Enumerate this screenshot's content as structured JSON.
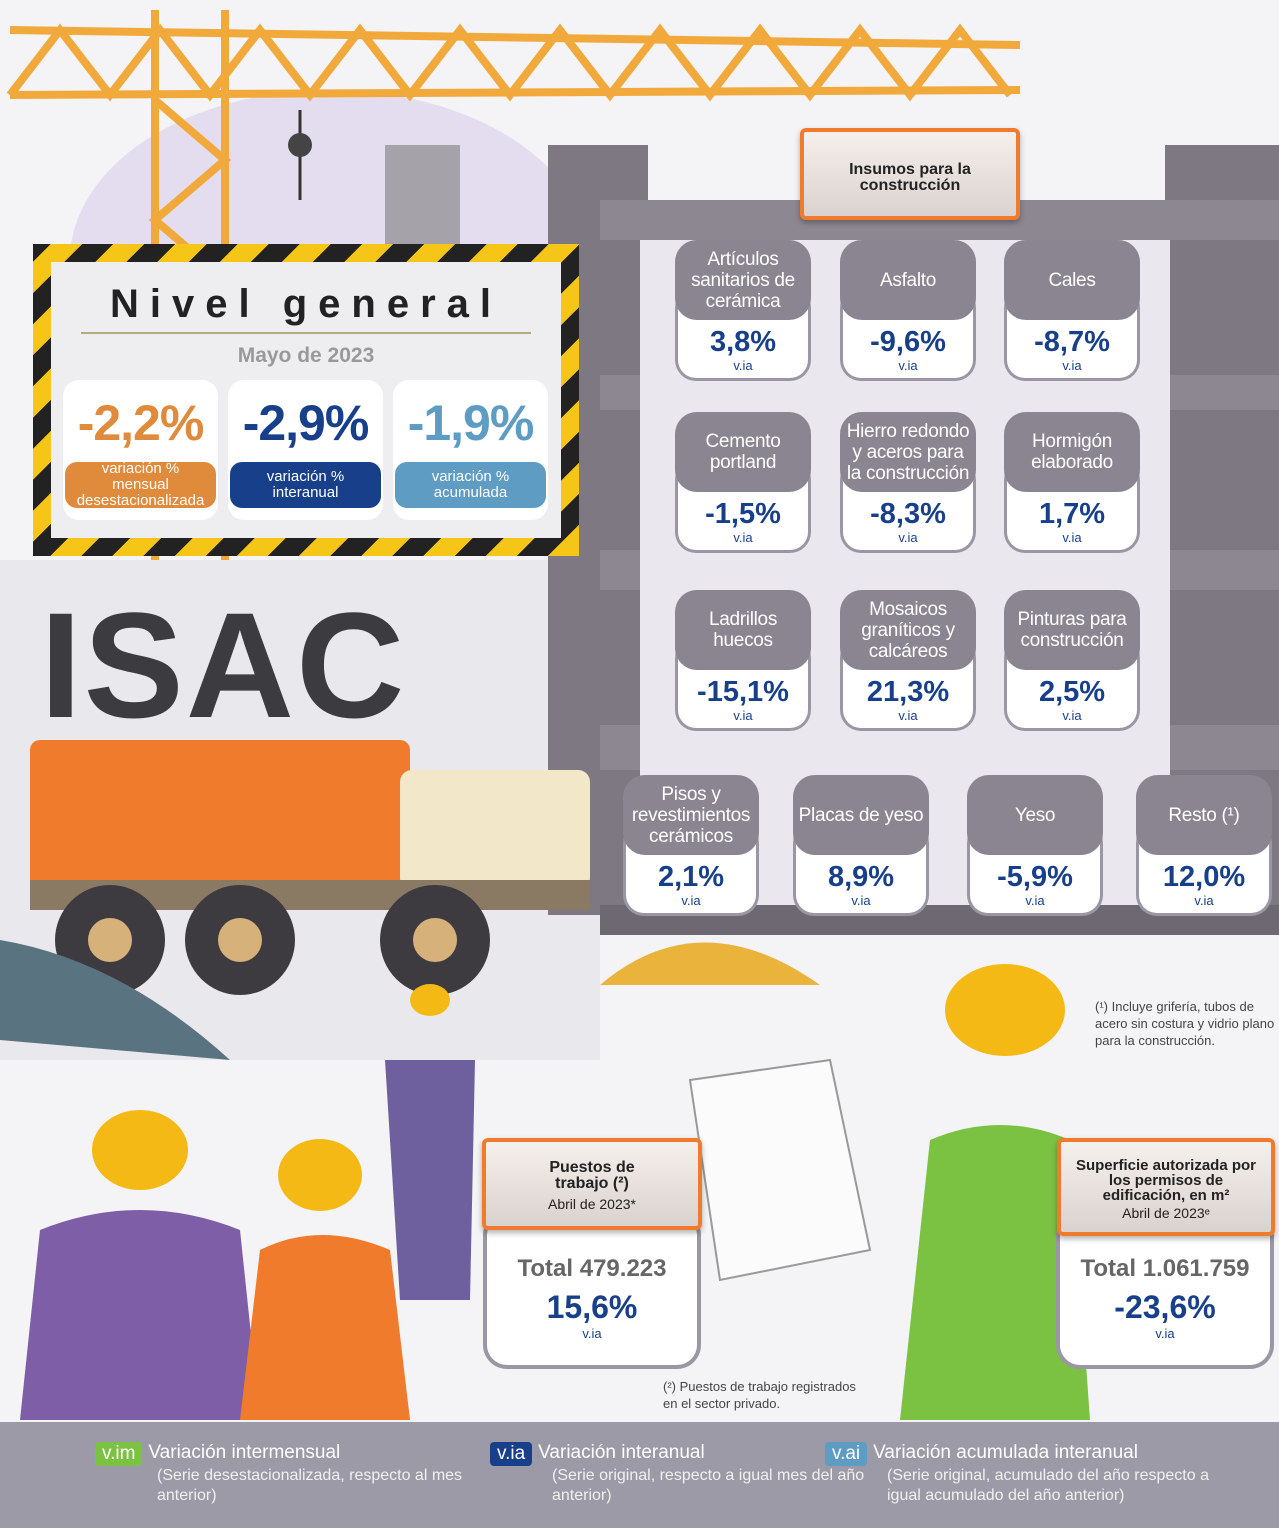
{
  "nivel_general": {
    "title": "Nivel general",
    "date": "Mayo de 2023",
    "indicators": [
      {
        "value": "-2,2%",
        "label": "variación % mensual desestacionalizada",
        "color": "#e08a3c"
      },
      {
        "value": "-2,9%",
        "label": "variación % interanual",
        "color": "#173f8a"
      },
      {
        "value": "-1,9%",
        "label": "variación % acumulada",
        "color": "#5f9cc4"
      }
    ]
  },
  "logo": "ISAC",
  "insumos": {
    "title": "Insumos para la construcción",
    "items": [
      {
        "name": "Artículos sanitarios de cerámica",
        "value": "3,8%",
        "unit": "v.ia"
      },
      {
        "name": "Asfalto",
        "value": "-9,6%",
        "unit": "v.ia"
      },
      {
        "name": "Cales",
        "value": "-8,7%",
        "unit": "v.ia"
      },
      {
        "name": "Cemento portland",
        "value": "-1,5%",
        "unit": "v.ia"
      },
      {
        "name": "Hierro redondo y aceros para la construcción",
        "value": "-8,3%",
        "unit": "v.ia"
      },
      {
        "name": "Hormigón elaborado",
        "value": "1,7%",
        "unit": "v.ia"
      },
      {
        "name": "Ladrillos huecos",
        "value": "-15,1%",
        "unit": "v.ia"
      },
      {
        "name": "Mosaicos graníticos y calcáreos",
        "value": "21,3%",
        "unit": "v.ia"
      },
      {
        "name": "Pinturas para construcción",
        "value": "2,5%",
        "unit": "v.ia"
      },
      {
        "name": "Pisos y revestimientos cerámicos",
        "value": "2,1%",
        "unit": "v.ia"
      },
      {
        "name": "Placas de yeso",
        "value": "8,9%",
        "unit": "v.ia"
      },
      {
        "name": "Yeso",
        "value": "-5,9%",
        "unit": "v.ia"
      },
      {
        "name": "Resto (¹)",
        "value": "12,0%",
        "unit": "v.ia"
      }
    ]
  },
  "note_1": "(¹) Incluye grifería, tubos de acero sin costura y vidrio plano para la construcción.",
  "puestos": {
    "title": "Puestos de trabajo (²)",
    "date": "Abril de 2023*",
    "total": "Total 479.223",
    "value": "15,6%",
    "unit": "v.ia"
  },
  "note_2": "(²) Puestos de trabajo registrados en el sector privado.",
  "superficie": {
    "title": "Superficie autorizada por los permisos de edificación, en m²",
    "date": "Abril de 2023ᵉ",
    "total": "Total 1.061.759",
    "value": "-23,6%",
    "unit": "v.ia"
  },
  "legend": [
    {
      "code": "v.im",
      "title": "Variación intermensual",
      "description": "(Serie desestacionalizada, respecto al mes anterior)",
      "color": "#7cc242"
    },
    {
      "code": "v.ia",
      "title": "Variación interanual",
      "description": "(Serie original, respecto a igual mes del año anterior)",
      "color": "#173f8a"
    },
    {
      "code": "v.ai",
      "title": "Variación acumulada interanual",
      "description": "(Serie original, acumulado del año respecto a igual acumulado del año anterior)",
      "color": "#5f9cc4"
    }
  ]
}
